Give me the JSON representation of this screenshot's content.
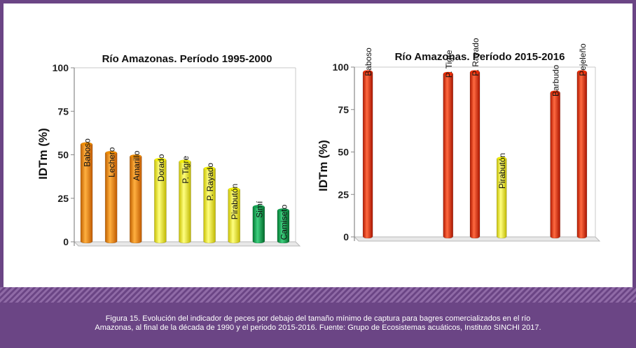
{
  "caption": {
    "line1": "Figura 15. Evolución del indicador de peces por debajo del tamaño mínimo de captura para bagres comercializados en el río",
    "line2": "Amazonas, al final de la década de 1990 y el periodo 2015-2016. Fuente: Grupo de Ecosistemas acuáticos, Instituto SINCHI 2017."
  },
  "chart_data": [
    {
      "type": "bar",
      "title": "Río Amazonas.  Período 1995-2000",
      "ylabel": "IDTm (%)",
      "ylim": [
        0,
        100
      ],
      "yticks": [
        "0",
        "25",
        "50",
        "75",
        "100"
      ],
      "grid": false,
      "categories": [
        "Baboso",
        "Lechero",
        "Amarillo",
        "Dorado",
        "P. Tigre",
        "P. Rayado",
        "Pirabutón",
        "Simí",
        "Camiseto"
      ],
      "values": [
        57,
        52,
        50,
        48,
        47,
        43,
        31,
        21,
        19
      ],
      "colors": [
        "#f08c00",
        "#f08c00",
        "#f08c00",
        "#f5f200",
        "#f5f200",
        "#f5f200",
        "#f5f200",
        "#12a050",
        "#12a050"
      ]
    },
    {
      "type": "bar",
      "title": "Río Amazonas. Período 2015-2016",
      "ylabel": "IDTm (%)",
      "ylim": [
        0,
        100
      ],
      "yticks": [
        "0",
        "25",
        "50",
        "75",
        "100"
      ],
      "grid": false,
      "categories": [
        "Baboso",
        "",
        "",
        "P. Tigre",
        "P. Rayado",
        "Pirabutón",
        "",
        "Barbudo",
        "Pejeleño"
      ],
      "values": [
        98,
        null,
        null,
        97,
        98,
        47,
        null,
        86,
        98
      ],
      "colors": [
        "#f02a00",
        null,
        null,
        "#f02a00",
        "#f02a00",
        "#f5f200",
        null,
        "#f02a00",
        "#f02a00"
      ]
    }
  ]
}
